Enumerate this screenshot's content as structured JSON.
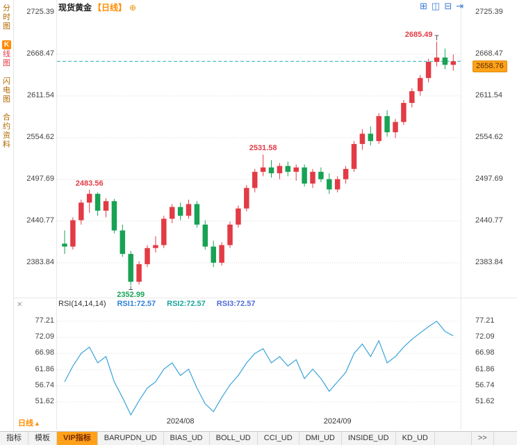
{
  "colors": {
    "up": "#e23b45",
    "down": "#17a254",
    "rsi_line": "#39a3da",
    "current_line": "#1ab2ae",
    "grid": "#d4d4d4",
    "accent_orange": "#ff8c00",
    "badge_bg": "#ffa21a"
  },
  "sidebar": {
    "items": [
      {
        "label": "分时图",
        "selected": false
      },
      {
        "label": "K线图",
        "selected": true
      },
      {
        "label": "闪电图",
        "selected": false
      },
      {
        "label": "合约资料",
        "selected": false
      }
    ]
  },
  "header": {
    "symbol": "现货黄金",
    "period": "【日线】",
    "add_icon": "⊕"
  },
  "layout_icons": [
    {
      "name": "grid-2x2-icon",
      "glyph": "⊞"
    },
    {
      "name": "split-columns-icon",
      "glyph": "◫"
    },
    {
      "name": "split-rows-icon",
      "glyph": "⊟"
    },
    {
      "name": "next-layout-icon",
      "glyph": "⇥"
    }
  ],
  "price_badge": "2658.76",
  "rsi_header": {
    "close_icon": "✕",
    "title": "RSI(14,14,14)",
    "series": [
      {
        "label": "RSI1:72.57",
        "color": "#2d7fd9"
      },
      {
        "label": "RSI2:72.57",
        "color": "#1ba39c"
      },
      {
        "label": "RSI3:72.57",
        "color": "#4f6bd8"
      }
    ]
  },
  "footer": {
    "period_label": "日线",
    "period_arrow": "▲"
  },
  "bottom_tabs": [
    {
      "label": "指标",
      "active": false,
      "more": false
    },
    {
      "label": "模板",
      "active": false,
      "more": false
    },
    {
      "label": "VIP指标",
      "active": true,
      "more": false
    },
    {
      "label": "BARUPDN_UD",
      "active": false,
      "more": false
    },
    {
      "label": "BIAS_UD",
      "active": false,
      "more": false
    },
    {
      "label": "BOLL_UD",
      "active": false,
      "more": false
    },
    {
      "label": "CCI_UD",
      "active": false,
      "more": false
    },
    {
      "label": "DMI_UD",
      "active": false,
      "more": false
    },
    {
      "label": "INSIDE_UD",
      "active": false,
      "more": false
    },
    {
      "label": "KD_UD",
      "active": false,
      "more": false
    },
    {
      "label": ">>",
      "active": false,
      "more": true
    }
  ],
  "chart_data": {
    "type": "candlestick",
    "title": "现货黄金 日线",
    "price_axis": [
      2725.39,
      2668.47,
      2611.54,
      2554.62,
      2497.69,
      2440.77,
      2383.84
    ],
    "rsi_axis": [
      77.21,
      72.09,
      66.98,
      61.86,
      56.74,
      51.62
    ],
    "current_price": 2658.76,
    "x_ticks": [
      {
        "text": "2024/08",
        "index": 14
      },
      {
        "text": "2024/09",
        "index": 33
      }
    ],
    "candles": [
      [
        2410,
        2428,
        2396,
        2406
      ],
      [
        2406,
        2446,
        2402,
        2442
      ],
      [
        2442,
        2470,
        2436,
        2466
      ],
      [
        2466,
        2483.56,
        2452,
        2478
      ],
      [
        2478,
        2480,
        2448,
        2455
      ],
      [
        2455,
        2472,
        2446,
        2468
      ],
      [
        2468,
        2471,
        2424,
        2428
      ],
      [
        2428,
        2436,
        2392,
        2396
      ],
      [
        2396,
        2400,
        2352.99,
        2358
      ],
      [
        2358,
        2386,
        2354,
        2382
      ],
      [
        2382,
        2408,
        2378,
        2404
      ],
      [
        2404,
        2420,
        2398,
        2408
      ],
      [
        2408,
        2448,
        2404,
        2444
      ],
      [
        2444,
        2464,
        2438,
        2460
      ],
      [
        2460,
        2466,
        2442,
        2448
      ],
      [
        2448,
        2470,
        2444,
        2464
      ],
      [
        2464,
        2468,
        2432,
        2436
      ],
      [
        2436,
        2442,
        2402,
        2406
      ],
      [
        2406,
        2414,
        2378,
        2384
      ],
      [
        2384,
        2412,
        2380,
        2408
      ],
      [
        2408,
        2440,
        2404,
        2436
      ],
      [
        2436,
        2462,
        2432,
        2458
      ],
      [
        2458,
        2490,
        2454,
        2486
      ],
      [
        2486,
        2512,
        2480,
        2508
      ],
      [
        2508,
        2531.58,
        2502,
        2514
      ],
      [
        2514,
        2524,
        2500,
        2506
      ],
      [
        2506,
        2520,
        2498,
        2516
      ],
      [
        2516,
        2522,
        2502,
        2508
      ],
      [
        2508,
        2518,
        2496,
        2514
      ],
      [
        2514,
        2518,
        2488,
        2492
      ],
      [
        2492,
        2512,
        2486,
        2508
      ],
      [
        2508,
        2514,
        2494,
        2498
      ],
      [
        2498,
        2506,
        2478,
        2484
      ],
      [
        2484,
        2502,
        2480,
        2498
      ],
      [
        2498,
        2516,
        2492,
        2512
      ],
      [
        2512,
        2550,
        2508,
        2546
      ],
      [
        2546,
        2566,
        2538,
        2560
      ],
      [
        2560,
        2570,
        2544,
        2550
      ],
      [
        2550,
        2588,
        2546,
        2584
      ],
      [
        2584,
        2592,
        2556,
        2562
      ],
      [
        2562,
        2580,
        2554,
        2576
      ],
      [
        2576,
        2606,
        2572,
        2602
      ],
      [
        2602,
        2622,
        2596,
        2618
      ],
      [
        2618,
        2640,
        2612,
        2636
      ],
      [
        2636,
        2662,
        2630,
        2658
      ],
      [
        2658,
        2685.49,
        2652,
        2664
      ],
      [
        2664,
        2676,
        2648,
        2654
      ],
      [
        2654,
        2668,
        2646,
        2658.76
      ]
    ],
    "rsi_values": [
      58,
      63,
      67,
      69,
      64,
      66,
      58,
      53,
      47.5,
      52,
      56,
      58,
      62,
      64,
      60,
      62,
      56,
      51,
      48.5,
      53,
      57,
      60,
      64,
      67,
      68.5,
      64,
      66,
      63,
      65,
      59,
      62,
      59,
      55,
      58,
      61,
      67,
      70,
      66,
      71,
      64,
      66,
      69,
      71.5,
      73.5,
      75.5,
      77.2,
      74,
      72.57
    ],
    "annotations": [
      {
        "text": "2483.56",
        "index": 3,
        "price": 2483.56,
        "trend": "up",
        "place": "above"
      },
      {
        "text": "2352.99",
        "index": 8,
        "price": 2352.99,
        "trend": "down",
        "place": "below"
      },
      {
        "text": "2531.58",
        "index": 24,
        "price": 2531.58,
        "trend": "up",
        "place": "above"
      },
      {
        "text": "2685.49",
        "index": 45,
        "price": 2685.49,
        "trend": "up",
        "place": "left"
      }
    ],
    "markers": [
      {
        "index": 45,
        "price": 2685.49,
        "dir": "above"
      },
      {
        "index": 8,
        "price": 2352.99,
        "dir": "below"
      }
    ]
  }
}
